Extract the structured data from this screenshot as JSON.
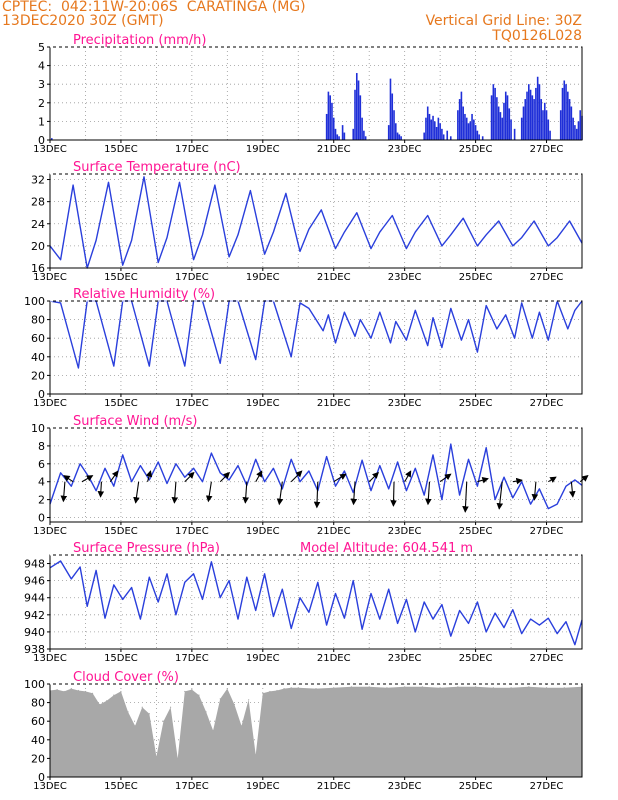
{
  "header": {
    "line1": "CPTEC:  042:11W-20:06S  CARATINGA (MG)",
    "line2": "13DEC2020 30Z (GMT)",
    "grid_note": "Vertical Grid Line: 30Z",
    "code": "TQ0126L028"
  },
  "colors": {
    "header": "#e6781e",
    "title": "#ff1493",
    "line": "#2a3fdc",
    "bar": "#1f2fd8",
    "cloud": "#a8a8a8",
    "arrow": "#000000"
  },
  "chart_data": [
    {
      "type": "bar",
      "title": "Precipitation (mm/h)",
      "x_range": [
        13.0,
        28.0
      ],
      "ylim": [
        0,
        5
      ],
      "yticks": [
        0,
        1,
        2,
        3,
        4,
        5
      ],
      "xticks": [
        "13DEC",
        "15DEC",
        "17DEC",
        "19DEC",
        "21DEC",
        "23DEC",
        "25DEC",
        "27DEC"
      ],
      "x": [
        13.05,
        20.8,
        20.85,
        20.9,
        20.95,
        21.0,
        21.05,
        21.1,
        21.15,
        21.25,
        21.3,
        21.55,
        21.6,
        21.65,
        21.7,
        21.75,
        21.8,
        21.85,
        21.9,
        22.55,
        22.6,
        22.65,
        22.7,
        22.75,
        22.8,
        22.85,
        22.9,
        23.55,
        23.6,
        23.65,
        23.7,
        23.75,
        23.8,
        23.85,
        23.9,
        23.95,
        24.0,
        24.05,
        24.1,
        24.2,
        24.3,
        24.5,
        24.55,
        24.6,
        24.65,
        24.7,
        24.75,
        24.8,
        24.85,
        24.9,
        24.95,
        25.0,
        25.05,
        25.1,
        25.2,
        25.45,
        25.5,
        25.55,
        25.6,
        25.65,
        25.7,
        25.75,
        25.8,
        25.85,
        25.9,
        25.95,
        26.0,
        26.1,
        26.3,
        26.35,
        26.4,
        26.45,
        26.5,
        26.55,
        26.6,
        26.65,
        26.7,
        26.75,
        26.8,
        26.85,
        26.9,
        26.95,
        27.0,
        27.05,
        27.1,
        27.4,
        27.45,
        27.5,
        27.55,
        27.6,
        27.65,
        27.7,
        27.75,
        27.8,
        27.85,
        27.9,
        27.95,
        28.0
      ],
      "values": [
        0.1,
        1.4,
        2.6,
        2.4,
        2.0,
        1.2,
        0.6,
        0.3,
        0.2,
        0.8,
        0.4,
        0.6,
        2.7,
        3.6,
        3.2,
        2.4,
        1.2,
        0.5,
        0.2,
        0.8,
        3.3,
        2.5,
        1.6,
        0.9,
        0.4,
        0.3,
        0.2,
        0.4,
        1.2,
        1.8,
        1.4,
        1.1,
        1.3,
        1.0,
        0.7,
        1.2,
        0.9,
        0.6,
        0.3,
        0.5,
        0.2,
        1.6,
        2.2,
        2.6,
        1.8,
        1.4,
        1.2,
        0.9,
        1.0,
        1.4,
        1.1,
        0.8,
        0.5,
        0.3,
        0.2,
        2.4,
        3.0,
        2.8,
        2.3,
        1.8,
        1.5,
        1.2,
        2.0,
        2.6,
        2.4,
        1.7,
        1.1,
        0.6,
        1.2,
        1.8,
        2.2,
        2.6,
        3.0,
        2.7,
        2.4,
        2.2,
        2.8,
        3.4,
        3.0,
        2.2,
        1.6,
        2.0,
        1.6,
        1.1,
        0.5,
        1.6,
        2.8,
        3.2,
        3.0,
        2.6,
        2.2,
        1.8,
        1.2,
        0.8,
        0.6,
        1.0,
        1.6,
        1.3
      ]
    },
    {
      "type": "line",
      "title": "Surface Temperature (nC)",
      "x_range": [
        13.0,
        28.0
      ],
      "ylim": [
        16,
        33
      ],
      "yticks": [
        16,
        20,
        24,
        28,
        32
      ],
      "xticks": [
        "13DEC",
        "15DEC",
        "17DEC",
        "19DEC",
        "21DEC",
        "23DEC",
        "25DEC",
        "27DEC"
      ],
      "x": [
        13.0,
        13.3,
        13.65,
        14.05,
        14.3,
        14.65,
        15.05,
        15.3,
        15.65,
        16.05,
        16.3,
        16.65,
        17.05,
        17.3,
        17.65,
        18.05,
        18.3,
        18.65,
        19.05,
        19.3,
        19.65,
        20.05,
        20.3,
        20.65,
        21.05,
        21.3,
        21.65,
        22.05,
        22.3,
        22.65,
        23.05,
        23.3,
        23.65,
        24.05,
        24.3,
        24.65,
        25.05,
        25.3,
        25.65,
        26.05,
        26.3,
        26.65,
        27.05,
        27.3,
        27.65,
        28.0
      ],
      "values": [
        20,
        17.5,
        31,
        16,
        21,
        31.5,
        16.5,
        21,
        32.5,
        17,
        21.5,
        31.5,
        17.5,
        22,
        31,
        18,
        22,
        30,
        18.5,
        22.5,
        29.5,
        19,
        23,
        26.5,
        19.5,
        22.5,
        26,
        19.5,
        22.5,
        25.5,
        19.5,
        22.5,
        25.5,
        20,
        22,
        25,
        20,
        22,
        24.5,
        20,
        21.5,
        24.5,
        20,
        21.5,
        24.5,
        20.5
      ]
    },
    {
      "type": "line",
      "title": "Relative Humidity (%)",
      "x_range": [
        13.0,
        28.0
      ],
      "ylim": [
        0,
        100
      ],
      "yticks": [
        0,
        20,
        40,
        60,
        80,
        100
      ],
      "xticks": [
        "13DEC",
        "15DEC",
        "17DEC",
        "19DEC",
        "21DEC",
        "23DEC",
        "25DEC",
        "27DEC"
      ],
      "x": [
        13.0,
        13.3,
        13.8,
        14.05,
        14.3,
        14.8,
        15.05,
        15.3,
        15.8,
        16.05,
        16.3,
        16.8,
        17.05,
        17.3,
        17.8,
        18.05,
        18.3,
        18.8,
        19.05,
        19.3,
        19.8,
        20.05,
        20.3,
        20.7,
        20.85,
        21.05,
        21.3,
        21.6,
        21.75,
        22.05,
        22.3,
        22.6,
        22.75,
        23.05,
        23.3,
        23.65,
        23.8,
        24.05,
        24.3,
        24.6,
        24.8,
        25.05,
        25.3,
        25.6,
        25.85,
        26.1,
        26.3,
        26.6,
        26.8,
        27.05,
        27.3,
        27.6,
        27.8,
        28.0
      ],
      "values": [
        100,
        98,
        28,
        100,
        100,
        30,
        100,
        100,
        30,
        100,
        100,
        30,
        100,
        100,
        33,
        100,
        100,
        37,
        100,
        100,
        40,
        98,
        92,
        68,
        85,
        55,
        88,
        62,
        80,
        60,
        88,
        55,
        78,
        58,
        90,
        52,
        82,
        50,
        92,
        58,
        80,
        45,
        95,
        70,
        85,
        60,
        98,
        60,
        88,
        58,
        100,
        70,
        90,
        100
      ]
    },
    {
      "type": "line",
      "title": "Surface Wind (m/s)",
      "x_range": [
        13.0,
        28.0
      ],
      "ylim": [
        -0.5,
        10
      ],
      "yticks": [
        0,
        2,
        4,
        6,
        8,
        10
      ],
      "xticks": [
        "13DEC",
        "15DEC",
        "17DEC",
        "19DEC",
        "21DEC",
        "23DEC",
        "25DEC",
        "27DEC"
      ],
      "x": [
        13.0,
        13.3,
        13.6,
        13.85,
        14.1,
        14.3,
        14.55,
        14.8,
        15.05,
        15.3,
        15.55,
        15.8,
        16.05,
        16.3,
        16.55,
        16.8,
        17.05,
        17.3,
        17.55,
        17.8,
        18.05,
        18.3,
        18.55,
        18.8,
        19.05,
        19.3,
        19.55,
        19.8,
        20.05,
        20.3,
        20.55,
        20.8,
        21.05,
        21.3,
        21.55,
        21.8,
        22.05,
        22.3,
        22.55,
        22.8,
        23.05,
        23.3,
        23.55,
        23.8,
        24.05,
        24.3,
        24.55,
        24.8,
        25.05,
        25.3,
        25.55,
        25.8,
        26.05,
        26.3,
        26.55,
        26.8,
        27.05,
        27.3,
        27.55,
        27.8,
        28.0
      ],
      "values": [
        1.5,
        5.0,
        3.5,
        6.0,
        4.5,
        3.0,
        5.5,
        3.5,
        7.0,
        4.0,
        5.8,
        4.2,
        6.2,
        3.8,
        6.0,
        4.5,
        5.5,
        4.0,
        7.2,
        5.0,
        4.2,
        5.8,
        3.6,
        6.5,
        4.0,
        5.5,
        3.2,
        6.5,
        4.0,
        5.2,
        3.0,
        6.8,
        3.5,
        5.2,
        2.8,
        6.4,
        3.0,
        5.8,
        3.2,
        6.2,
        3.0,
        5.5,
        2.5,
        7.0,
        2.0,
        8.2,
        2.5,
        6.5,
        3.5,
        7.8,
        2.0,
        4.5,
        2.2,
        4.0,
        1.5,
        3.2,
        1.0,
        1.5,
        3.5,
        4.2,
        3.6
      ]
    },
    {
      "type": "line",
      "title": "Surface Pressure (hPa)",
      "annotation": "Model Altitude: 604.541  m",
      "x_range": [
        13.0,
        28.0
      ],
      "ylim": [
        938,
        949
      ],
      "yticks": [
        938,
        940,
        942,
        944,
        946,
        948
      ],
      "xticks": [
        "13DEC",
        "15DEC",
        "17DEC",
        "19DEC",
        "21DEC",
        "23DEC",
        "25DEC",
        "27DEC"
      ],
      "x": [
        13.0,
        13.3,
        13.6,
        13.85,
        14.05,
        14.3,
        14.55,
        14.8,
        15.05,
        15.3,
        15.55,
        15.8,
        16.05,
        16.3,
        16.55,
        16.8,
        17.05,
        17.3,
        17.55,
        17.8,
        18.05,
        18.3,
        18.55,
        18.8,
        19.05,
        19.3,
        19.55,
        19.8,
        20.05,
        20.3,
        20.55,
        20.8,
        21.05,
        21.3,
        21.55,
        21.8,
        22.05,
        22.3,
        22.55,
        22.8,
        23.05,
        23.3,
        23.55,
        23.8,
        24.05,
        24.3,
        24.55,
        24.8,
        25.05,
        25.3,
        25.55,
        25.8,
        26.05,
        26.3,
        26.55,
        26.8,
        27.05,
        27.3,
        27.55,
        27.8,
        28.0
      ],
      "values": [
        947.5,
        948.3,
        946.2,
        947.6,
        943.0,
        947.2,
        941.6,
        945.5,
        943.8,
        945.2,
        941.5,
        946.4,
        943.5,
        946.8,
        942.0,
        945.8,
        946.8,
        943.8,
        948.2,
        944.0,
        946.0,
        941.5,
        946.4,
        942.5,
        946.8,
        941.8,
        945.0,
        940.4,
        944.0,
        942.3,
        945.8,
        940.8,
        944.5,
        941.6,
        946.0,
        940.3,
        944.5,
        941.5,
        945.0,
        941.0,
        943.8,
        940.0,
        943.5,
        941.5,
        943.2,
        939.5,
        942.5,
        941.0,
        943.5,
        940.0,
        942.2,
        940.5,
        942.6,
        939.8,
        941.5,
        940.8,
        941.6,
        939.8,
        941.2,
        938.5,
        941.4
      ]
    },
    {
      "type": "area",
      "title": "Cloud Cover (%)",
      "x_range": [
        13.0,
        28.0
      ],
      "ylim": [
        0,
        100
      ],
      "yticks": [
        0,
        20,
        40,
        60,
        80,
        100
      ],
      "xticks": [
        "13DEC",
        "15DEC",
        "17DEC",
        "19DEC",
        "21DEC",
        "23DEC",
        "25DEC",
        "27DEC"
      ],
      "x": [
        13.0,
        13.2,
        13.4,
        13.6,
        13.8,
        14.0,
        14.2,
        14.4,
        14.6,
        14.8,
        15.0,
        15.2,
        15.4,
        15.6,
        15.8,
        16.0,
        16.2,
        16.4,
        16.6,
        16.8,
        17.0,
        17.2,
        17.4,
        17.6,
        17.8,
        18.0,
        18.2,
        18.4,
        18.6,
        18.8,
        19.0,
        19.2,
        19.4,
        19.6,
        19.8,
        20.0,
        20.5,
        21.0,
        21.5,
        22.0,
        22.5,
        23.0,
        23.5,
        24.0,
        24.5,
        25.0,
        25.5,
        26.0,
        26.5,
        27.0,
        27.5,
        28.0
      ],
      "values": [
        93,
        94,
        92,
        95,
        93,
        92,
        90,
        78,
        82,
        88,
        92,
        70,
        55,
        75,
        68,
        22,
        60,
        75,
        20,
        92,
        94,
        88,
        70,
        50,
        84,
        95,
        78,
        55,
        83,
        24,
        90,
        92,
        93,
        95,
        96,
        96,
        95,
        96,
        97,
        97,
        96,
        97,
        97,
        96,
        97,
        97,
        96,
        96,
        97,
        96,
        96,
        97
      ]
    }
  ],
  "wind_arrows": [
    {
      "x": 13.42,
      "u": -0.05,
      "v": -0.65
    },
    {
      "x": 13.65,
      "u": -0.3,
      "v": 0.2
    },
    {
      "x": 13.9,
      "u": 0.35,
      "v": 0.2
    },
    {
      "x": 14.45,
      "u": -0.03,
      "v": -0.5
    },
    {
      "x": 14.7,
      "u": 0.25,
      "v": 0.35
    },
    {
      "x": 15.5,
      "u": -0.1,
      "v": -0.7
    },
    {
      "x": 15.75,
      "u": 0.1,
      "v": 0.35
    },
    {
      "x": 16.55,
      "u": -0.05,
      "v": -0.7
    },
    {
      "x": 16.8,
      "u": 0.3,
      "v": 0.3
    },
    {
      "x": 17.55,
      "u": -0.1,
      "v": -0.65
    },
    {
      "x": 17.8,
      "u": 0.3,
      "v": 0.3
    },
    {
      "x": 18.55,
      "u": -0.05,
      "v": -0.7
    },
    {
      "x": 18.8,
      "u": 0.2,
      "v": 0.35
    },
    {
      "x": 19.55,
      "u": -0.1,
      "v": -0.75
    },
    {
      "x": 19.8,
      "u": 0.35,
      "v": 0.35
    },
    {
      "x": 20.55,
      "u": -0.03,
      "v": -0.85
    },
    {
      "x": 21.0,
      "u": 0.4,
      "v": 0.25
    },
    {
      "x": 21.6,
      "u": -0.05,
      "v": -0.75
    },
    {
      "x": 22.0,
      "u": 0.3,
      "v": 0.3
    },
    {
      "x": 22.7,
      "u": -0.02,
      "v": -0.8
    },
    {
      "x": 23.0,
      "u": 0.2,
      "v": 0.35
    },
    {
      "x": 23.7,
      "u": -0.05,
      "v": -0.75
    },
    {
      "x": 24.0,
      "u": 0.35,
      "v": 0.25
    },
    {
      "x": 24.75,
      "u": -0.05,
      "v": -1.0
    },
    {
      "x": 25.05,
      "u": 0.35,
      "v": 0.1
    },
    {
      "x": 25.75,
      "u": -0.1,
      "v": -0.9
    },
    {
      "x": 26.05,
      "u": 0.3,
      "v": 0.05
    },
    {
      "x": 26.7,
      "u": -0.05,
      "v": -0.6
    },
    {
      "x": 27.05,
      "u": 0.25,
      "v": 0.15
    },
    {
      "x": 27.7,
      "u": 0.05,
      "v": -0.5
    },
    {
      "x": 27.95,
      "u": 0.25,
      "v": 0.2
    }
  ]
}
